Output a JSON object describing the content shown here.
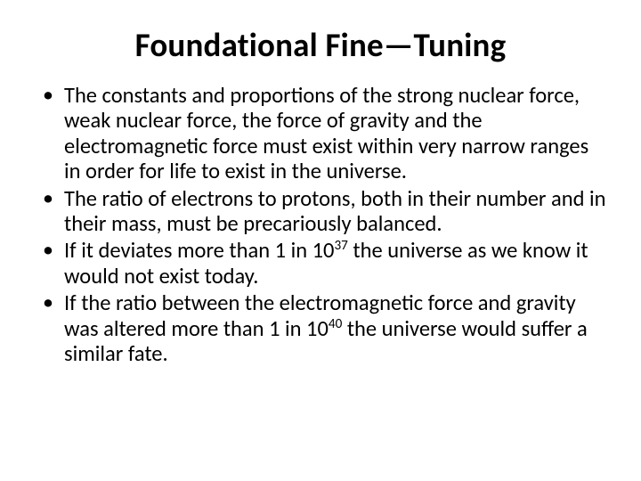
{
  "title_fontsize": 37,
  "body_fontsize": 24.5,
  "line_height": 1.16,
  "text_color": "#000000",
  "background_color": "#ffffff",
  "font_family": "Calibri",
  "title": "Foundational Fine—Tuning",
  "bullets": [
    {
      "text": "The constants and proportions of the strong nuclear force, weak nuclear force, the force of gravity and the electromagnetic force must exist within very narrow ranges in order for life to exist in the universe."
    },
    {
      "text": "The ratio of electrons to protons, both in their number and in their mass, must be precariously balanced."
    },
    {
      "pre": "If it deviates more than 1 in 10",
      "exp": "37",
      "post": " the universe as we know it would not exist today."
    },
    {
      "pre": "If the ratio between the electromagnetic force and gravity was altered more than 1 in 10",
      "exp": "40",
      "post": " the universe would suffer a similar fate."
    }
  ]
}
